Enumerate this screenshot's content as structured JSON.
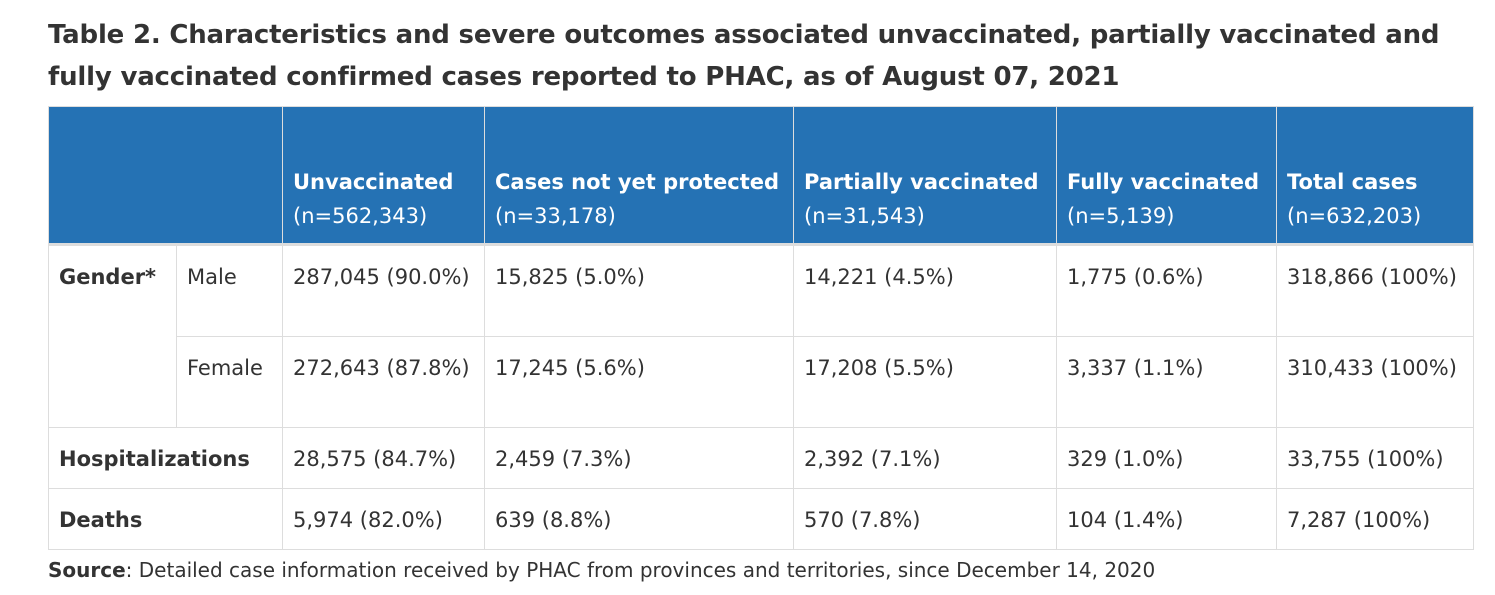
{
  "caption": "Table 2. Characteristics and severe outcomes associated unvaccinated, partially vaccinated and fully vaccinated confirmed cases reported to PHAC, as of August 07, 2021",
  "header": {
    "columns": [
      {
        "label": "Unvaccinated",
        "n": "(n=562,343)"
      },
      {
        "label": "Cases not yet protected",
        "n": "(n=33,178)"
      },
      {
        "label": "Partially vaccinated",
        "n": "(n=31,543)"
      },
      {
        "label": "Fully vaccinated",
        "n": "(n=5,139)"
      },
      {
        "label": "Total cases",
        "n": "(n=632,203)"
      }
    ]
  },
  "rows": {
    "gender": {
      "label": "Gender*",
      "male": {
        "label": "Male",
        "cells": [
          "287,045 (90.0%)",
          "15,825 (5.0%)",
          "14,221 (4.5%)",
          "1,775 (0.6%)",
          "318,866 (100%)"
        ]
      },
      "female": {
        "label": "Female",
        "cells": [
          "272,643 (87.8%)",
          "17,245 (5.6%)",
          "17,208 (5.5%)",
          "3,337 (1.1%)",
          "310,433 (100%)"
        ]
      }
    },
    "hospitalizations": {
      "label": "Hospitalizations",
      "cells": [
        "28,575 (84.7%)",
        "2,459 (7.3%)",
        "2,392 (7.1%)",
        "329 (1.0%)",
        "33,755 (100%)"
      ]
    },
    "deaths": {
      "label": "Deaths",
      "cells": [
        "5,974 (82.0%)",
        "639 (8.8%)",
        "570 (7.8%)",
        "104 (1.4%)",
        "7,287 (100%)"
      ]
    }
  },
  "source": {
    "label": "Source",
    "text": ": Detailed case information received by PHAC from provinces and territories, since December 14, 2020"
  }
}
